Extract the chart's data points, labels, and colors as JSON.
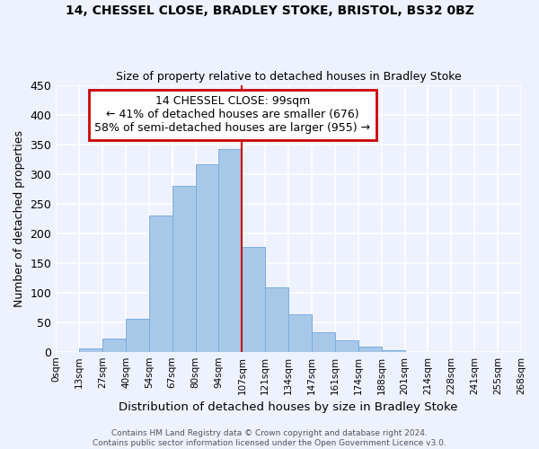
{
  "title": "14, CHESSEL CLOSE, BRADLEY STOKE, BRISTOL, BS32 0BZ",
  "subtitle": "Size of property relative to detached houses in Bradley Stoke",
  "xlabel": "Distribution of detached houses by size in Bradley Stoke",
  "ylabel": "Number of detached properties",
  "bin_labels": [
    "0sqm",
    "13sqm",
    "27sqm",
    "40sqm",
    "54sqm",
    "67sqm",
    "80sqm",
    "94sqm",
    "107sqm",
    "121sqm",
    "134sqm",
    "147sqm",
    "161sqm",
    "174sqm",
    "188sqm",
    "201sqm",
    "214sqm",
    "228sqm",
    "241sqm",
    "255sqm",
    "268sqm"
  ],
  "bar_heights": [
    0,
    6,
    22,
    55,
    230,
    280,
    316,
    342,
    177,
    108,
    63,
    33,
    19,
    8,
    2,
    0,
    0,
    0,
    0,
    0
  ],
  "bar_color": "#a8c8e8",
  "bar_edge_color": "#7aade0",
  "vline_x": 8.0,
  "vline_color": "#cc0000",
  "annotation_title": "14 CHESSEL CLOSE: 99sqm",
  "annotation_line1": "← 41% of detached houses are smaller (676)",
  "annotation_line2": "58% of semi-detached houses are larger (955) →",
  "annotation_box_color": "#ffffff",
  "annotation_box_edge": "#cc0000",
  "ylim": [
    0,
    450
  ],
  "yticks": [
    0,
    50,
    100,
    150,
    200,
    250,
    300,
    350,
    400,
    450
  ],
  "footer_line1": "Contains HM Land Registry data © Crown copyright and database right 2024.",
  "footer_line2": "Contains public sector information licensed under the Open Government Licence v3.0.",
  "bg_color": "#eef2ff",
  "grid_color": "#ffffff"
}
